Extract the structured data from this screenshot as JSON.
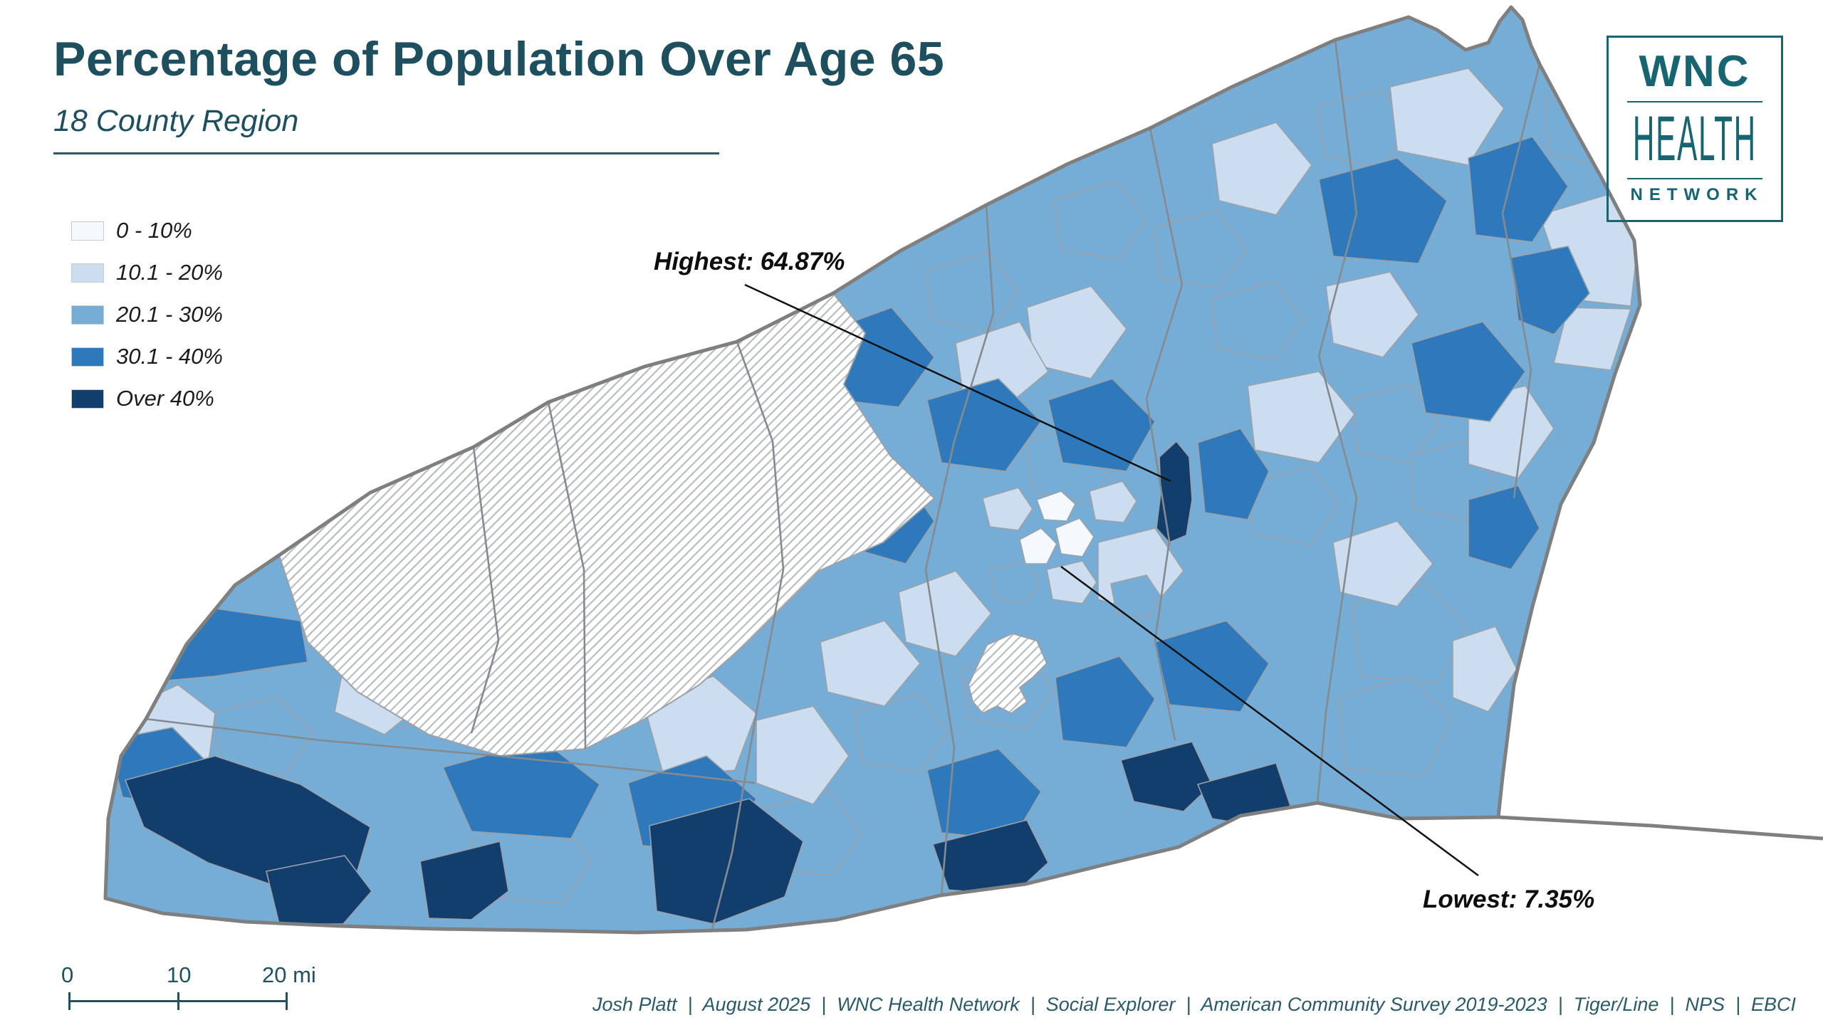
{
  "header": {
    "title": "Percentage of Population Over Age 65",
    "subtitle": "18 County Region"
  },
  "legend": {
    "items": [
      {
        "label": "0 - 10%",
        "color": "#f4f9fd"
      },
      {
        "label": "10.1 - 20%",
        "color": "#ccddef"
      },
      {
        "label": "20.1 - 30%",
        "color": "#76add6"
      },
      {
        "label": "30.1 - 40%",
        "color": "#2e79bb"
      },
      {
        "label": "Over 40%",
        "color": "#123e6e"
      }
    ]
  },
  "annotations": {
    "highest": "Highest: 64.87%",
    "lowest": "Lowest: 7.35%"
  },
  "logo": {
    "line1": "WNC",
    "line2": "HEALTH",
    "line3": "NETWORK"
  },
  "scale_bar": {
    "tick0": "0",
    "tick1": "10",
    "tick2": "20 mi"
  },
  "credits": "Josh Platt  |  August 2025  |  WNC Health Network  |  Social Explorer  |  American Community Survey 2019-2023  |  Tiger/Line  |  NPS  |  EBCI",
  "map": {
    "state_border_color": "#7f7f7f",
    "tract_border_color": "#9aa1a8",
    "county_border_color": "#848a90",
    "hatch_line_color": "#b9bdc1",
    "leader_line_color": "#111111"
  }
}
